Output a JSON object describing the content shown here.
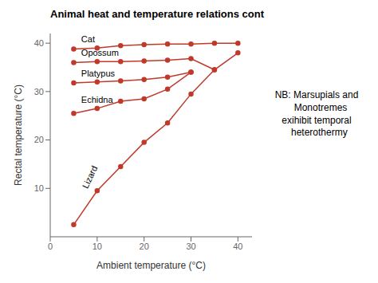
{
  "chart_data": {
    "type": "line",
    "title": "Animal heat and temperature relations cont",
    "xlabel": "Ambient temperature (°C)",
    "ylabel": "Rectal temperature (°C)",
    "xlim": [
      0,
      43
    ],
    "ylim": [
      0,
      42
    ],
    "xticks": [
      0,
      10,
      20,
      30,
      40
    ],
    "yticks": [
      10,
      20,
      30,
      40
    ],
    "grid": false,
    "color": "#c0392b",
    "marker": "circle",
    "annotations": [
      "NB: Marsupials and",
      "   Monotremes",
      "exihibit temporal",
      "  heterothermy"
    ],
    "series": [
      {
        "name": "Cat",
        "x": [
          5,
          10,
          15,
          20,
          25,
          30,
          35,
          40
        ],
        "values": [
          38.8,
          39.0,
          39.5,
          39.7,
          39.8,
          39.8,
          40.0,
          40.0
        ]
      },
      {
        "name": "Opossum",
        "x": [
          5,
          10,
          15,
          20,
          25,
          30,
          35
        ],
        "values": [
          36.0,
          36.2,
          36.2,
          36.3,
          36.5,
          36.8,
          34.5
        ]
      },
      {
        "name": "Platypus",
        "x": [
          5,
          10,
          15,
          20,
          25,
          30
        ],
        "values": [
          31.8,
          32.0,
          32.2,
          32.5,
          33.0,
          34.0
        ]
      },
      {
        "name": "Echidna",
        "x": [
          5,
          10,
          15,
          20,
          25,
          30
        ],
        "values": [
          25.5,
          26.5,
          28.0,
          28.5,
          30.5,
          34.0
        ]
      },
      {
        "name": "Lizard",
        "x": [
          5,
          10,
          15,
          20,
          25,
          30,
          35,
          40
        ],
        "values": [
          2.5,
          9.5,
          14.5,
          19.5,
          23.5,
          29.5,
          34.5,
          38.0
        ]
      }
    ]
  }
}
